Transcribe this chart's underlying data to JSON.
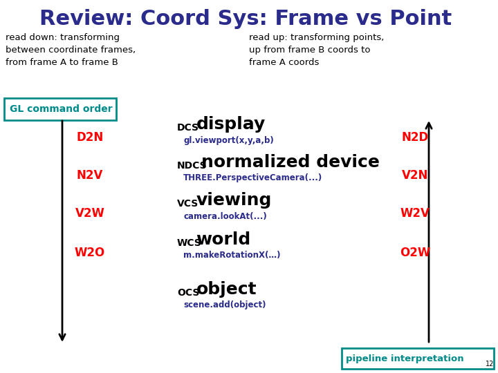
{
  "title": "Review: Coord Sys: Frame vs Point",
  "title_color": "#2B2B8B",
  "title_fontsize": 22,
  "bg_color": "#FFFFFF",
  "left_text": "read down: transforming\nbetween coordinate frames,\nfrom frame A to frame B",
  "right_text": "read up: transforming points,\nup from frame B coords to\nframe A coords",
  "gl_label": "GL command order",
  "pipeline_label": "pipeline interpretation",
  "box_color": "#008B8B",
  "rows": [
    {
      "left_label": "D2N",
      "right_label": "N2D",
      "coord_sys": "DCS",
      "space_name": "display",
      "func": "gl.viewport(x,y,a,b)",
      "func_color": "#2B2B8B"
    },
    {
      "left_label": "N2V",
      "right_label": "V2N",
      "coord_sys": "NDCS",
      "space_name": "normalized device",
      "func": "THREE.PerspectiveCamera(...)",
      "func_color": "#2B2B8B"
    },
    {
      "left_label": "V2W",
      "right_label": "W2V",
      "coord_sys": "VCS",
      "space_name": "viewing",
      "func": "camera.lookAt(...)",
      "func_color": "#2B2B8B"
    },
    {
      "left_label": "W2O",
      "right_label": "O2W",
      "coord_sys": "WCS",
      "space_name": "world",
      "func": "m.makeRotationX(…)",
      "func_color": "#2B2B8B"
    },
    {
      "left_label": "",
      "right_label": "",
      "coord_sys": "OCS",
      "space_name": "object",
      "func": "scene.add(object)",
      "func_color": "#2B2B8B"
    }
  ]
}
